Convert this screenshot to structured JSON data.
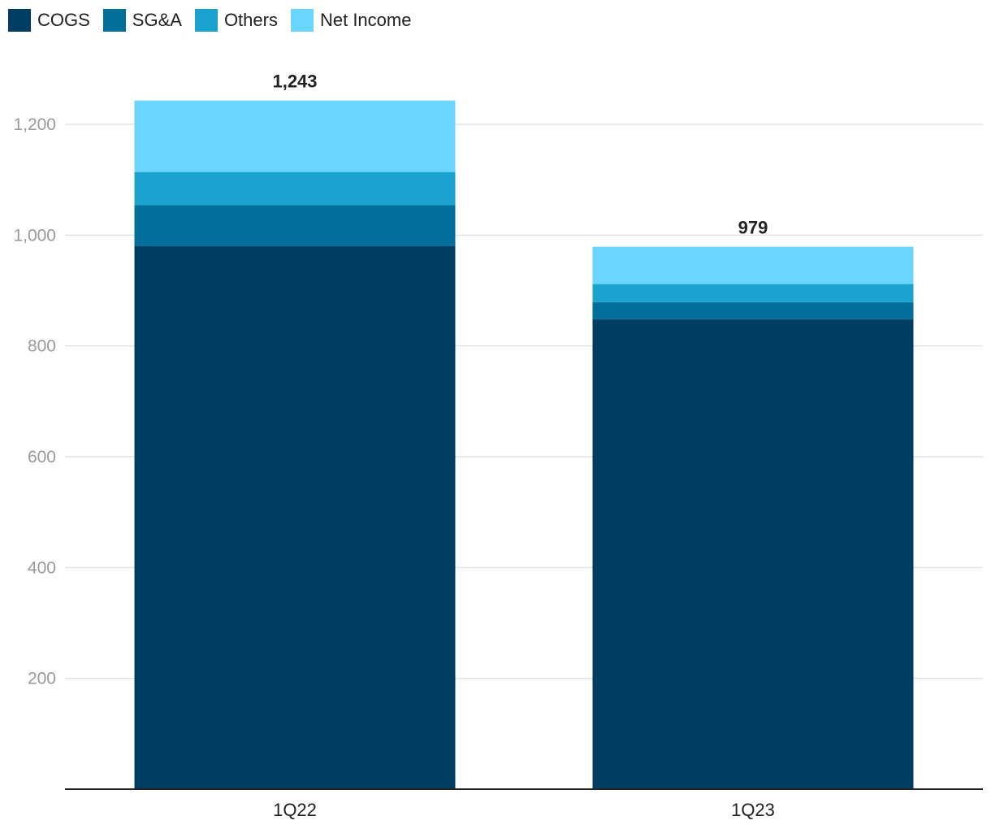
{
  "chart_data": {
    "type": "bar",
    "stacked": true,
    "categories": [
      "1Q22",
      "1Q23"
    ],
    "series": [
      {
        "name": "COGS",
        "color": "#003d62",
        "values": [
          980,
          848
        ]
      },
      {
        "name": "SG&A",
        "color": "#006f99",
        "values": [
          74,
          31
        ]
      },
      {
        "name": "Others",
        "color": "#1aa3cf",
        "values": [
          60,
          33
        ]
      },
      {
        "name": "Net Income",
        "color": "#6ad6ff",
        "values": [
          129,
          67
        ]
      }
    ],
    "totals": [
      "1,243",
      "979"
    ],
    "total_values": [
      1243,
      979
    ],
    "ylim": [
      0,
      1200
    ],
    "yticks": [
      200,
      400,
      600,
      800,
      1000,
      1200
    ],
    "ytick_labels": [
      "200",
      "400",
      "600",
      "800",
      "1,000",
      "1,200"
    ],
    "legend_position": "top-left",
    "grid": true
  }
}
